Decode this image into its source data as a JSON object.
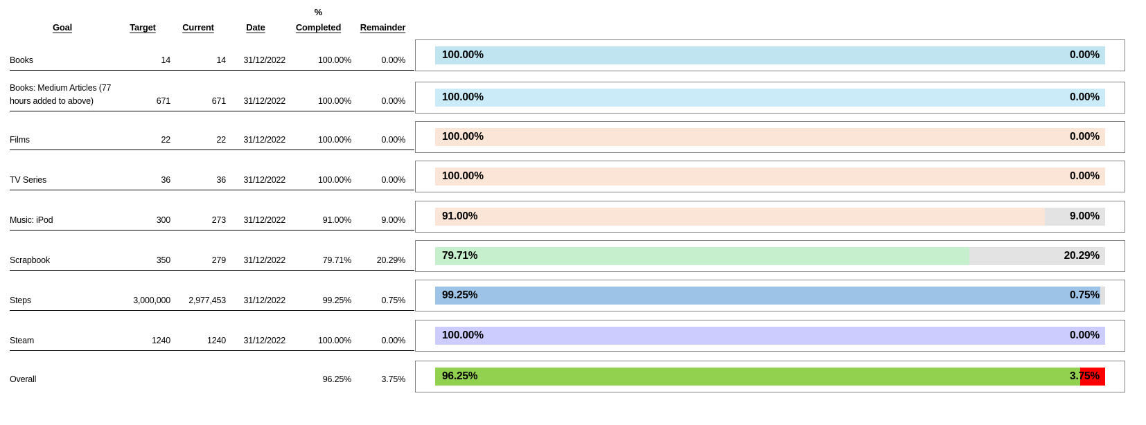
{
  "table": {
    "percent_header": "%",
    "columns": [
      "Goal",
      "Target",
      "Current",
      "Date",
      "Completed",
      "Remainder"
    ],
    "rows": [
      {
        "goal": "Books",
        "target": "14",
        "current": "14",
        "date": "31/12/2022",
        "completed": "100.00%",
        "remainder": "0.00%"
      },
      {
        "goal": "Books: Medium Articles (77 hours added to above)",
        "target": "671",
        "current": "671",
        "date": "31/12/2022",
        "completed": "100.00%",
        "remainder": "0.00%"
      },
      {
        "goal": "Films",
        "target": "22",
        "current": "22",
        "date": "31/12/2022",
        "completed": "100.00%",
        "remainder": "0.00%"
      },
      {
        "goal": "TV Series",
        "target": "36",
        "current": "36",
        "date": "31/12/2022",
        "completed": "100.00%",
        "remainder": "0.00%"
      },
      {
        "goal": "Music: iPod",
        "target": "300",
        "current": "273",
        "date": "31/12/2022",
        "completed": "91.00%",
        "remainder": "9.00%"
      },
      {
        "goal": "Scrapbook",
        "target": "350",
        "current": "279",
        "date": "31/12/2022",
        "completed": "79.71%",
        "remainder": "20.29%"
      },
      {
        "goal": "Steps",
        "target": "3,000,000",
        "current": "2,977,453",
        "date": "31/12/2022",
        "completed": "99.25%",
        "remainder": "0.75%"
      },
      {
        "goal": "Steam",
        "target": "1240",
        "current": "1240",
        "date": "31/12/2022",
        "completed": "100.00%",
        "remainder": "0.00%"
      },
      {
        "goal": "Overall",
        "target": "",
        "current": "",
        "date": "",
        "completed": "96.25%",
        "remainder": "3.75%"
      }
    ]
  },
  "chart_data": {
    "type": "bar",
    "orientation": "horizontal",
    "xlim": [
      0,
      100
    ],
    "grid": false,
    "legend": "none",
    "categories": [
      "Books",
      "Books: Medium Articles (77 hours added to above)",
      "Films",
      "TV Series",
      "Music: iPod",
      "Scrapbook",
      "Steps",
      "Steam",
      "Overall"
    ],
    "series": [
      {
        "name": "% Completed",
        "values": [
          100.0,
          100.0,
          100.0,
          100.0,
          91.0,
          79.71,
          99.25,
          100.0,
          96.25
        ]
      },
      {
        "name": "Remainder",
        "values": [
          0.0,
          0.0,
          0.0,
          0.0,
          9.0,
          20.29,
          0.75,
          0.0,
          3.75
        ]
      }
    ],
    "bars": [
      {
        "name": "Books",
        "completed": 100.0,
        "remainder": 0.0,
        "completed_label": "100.00%",
        "remainder_label": "0.00%",
        "completed_color": "#C0E4F0",
        "remainder_color": "#E3E3E3"
      },
      {
        "name": "Books: Medium Articles",
        "completed": 100.0,
        "remainder": 0.0,
        "completed_label": "100.00%",
        "remainder_label": "0.00%",
        "completed_color": "#CBEBF9",
        "remainder_color": "#E3E3E3"
      },
      {
        "name": "Films",
        "completed": 100.0,
        "remainder": 0.0,
        "completed_label": "100.00%",
        "remainder_label": "0.00%",
        "completed_color": "#FBE5D7",
        "remainder_color": "#E3E3E3"
      },
      {
        "name": "TV Series",
        "completed": 100.0,
        "remainder": 0.0,
        "completed_label": "100.00%",
        "remainder_label": "0.00%",
        "completed_color": "#FBE5D7",
        "remainder_color": "#E3E3E3"
      },
      {
        "name": "Music: iPod",
        "completed": 91.0,
        "remainder": 9.0,
        "completed_label": "91.00%",
        "remainder_label": "9.00%",
        "completed_color": "#FBE5D7",
        "remainder_color": "#E3E3E3"
      },
      {
        "name": "Scrapbook",
        "completed": 79.71,
        "remainder": 20.29,
        "completed_label": "79.71%",
        "remainder_label": "20.29%",
        "completed_color": "#C6EFCE",
        "remainder_color": "#E3E3E3"
      },
      {
        "name": "Steps",
        "completed": 99.25,
        "remainder": 0.75,
        "completed_label": "99.25%",
        "remainder_label": "0.75%",
        "completed_color": "#9DC3E6",
        "remainder_color": "#E0E0E0"
      },
      {
        "name": "Steam",
        "completed": 100.0,
        "remainder": 0.0,
        "completed_label": "100.00%",
        "remainder_label": "0.00%",
        "completed_color": "#CCCCFF",
        "remainder_color": "#E3E3E3"
      },
      {
        "name": "Overall",
        "completed": 96.25,
        "remainder": 3.75,
        "completed_label": "96.25%",
        "remainder_label": "3.75%",
        "completed_color": "#92D050",
        "remainder_color": "#FF0000"
      }
    ]
  }
}
